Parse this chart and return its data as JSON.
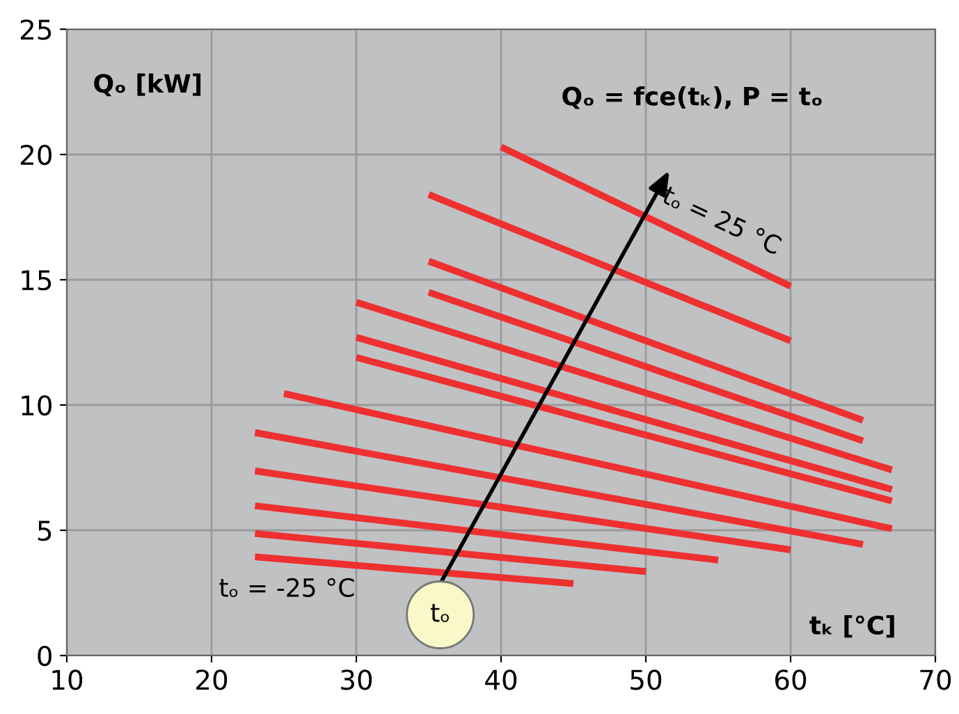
{
  "chart_data": {
    "type": "line",
    "title": "Qₒ = fce(tₖ), P = tₒ",
    "xlabel": "tₖ [°C]",
    "ylabel": "Qₒ [kW]",
    "series": [
      {
        "color": "#ee3030",
        "x": [
          23,
          45
        ],
        "values": [
          3.94,
          2.87
        ]
      },
      {
        "color": "#ee3030",
        "x": [
          23,
          50
        ],
        "values": [
          4.87,
          3.35
        ]
      },
      {
        "color": "#ee3030",
        "x": [
          23,
          55
        ],
        "values": [
          5.98,
          3.81
        ]
      },
      {
        "color": "#ee3030",
        "x": [
          23,
          60
        ],
        "values": [
          7.37,
          4.22
        ]
      },
      {
        "color": "#ee3030",
        "x": [
          23,
          65
        ],
        "values": [
          8.9,
          4.44
        ]
      },
      {
        "color": "#ee3030",
        "x": [
          25,
          67
        ],
        "values": [
          10.46,
          5.06
        ]
      },
      {
        "color": "#ee3030",
        "x": [
          30,
          67
        ],
        "values": [
          11.9,
          6.17
        ]
      },
      {
        "color": "#ee3030",
        "x": [
          30,
          67
        ],
        "values": [
          12.7,
          6.63
        ]
      },
      {
        "color": "#ee3030",
        "x": [
          30,
          67
        ],
        "values": [
          14.1,
          7.41
        ]
      },
      {
        "color": "#ee3030",
        "x": [
          35,
          65
        ],
        "values": [
          14.5,
          8.57
        ]
      },
      {
        "color": "#ee3030",
        "x": [
          35,
          65
        ],
        "values": [
          15.74,
          9.39
        ]
      },
      {
        "color": "#ee3030",
        "x": [
          35,
          60
        ],
        "values": [
          18.4,
          12.56
        ]
      },
      {
        "color": "#ee3030",
        "x": [
          40,
          60
        ],
        "values": [
          20.3,
          14.74
        ]
      }
    ],
    "annotations": [
      "tₒ = -25 °C",
      "tₒ = 25 °C",
      "tₒ"
    ],
    "xlim": [
      10,
      70
    ],
    "ylim": [
      0,
      25
    ],
    "xticks": [
      10,
      20,
      30,
      40,
      50,
      60,
      70
    ],
    "yticks": [
      0,
      5,
      10,
      15,
      20,
      25
    ],
    "grid": true,
    "marker": "none",
    "line_style": "solid"
  }
}
